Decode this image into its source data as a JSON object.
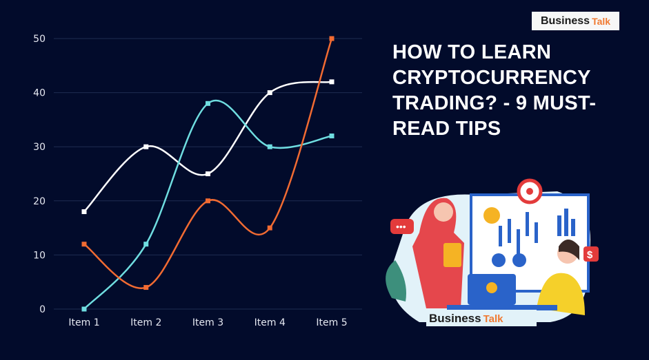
{
  "logo": {
    "business": "Business",
    "talk": "Talk"
  },
  "headline": "HOW TO LEARN CRYPTOCURRENCY TRADING? - 9 MUST-READ TIPS",
  "illustration": {
    "speech_icon": "chat-bubble-icon",
    "dollar_badge": "$",
    "logo_business": "Business",
    "logo_talk": "Talk"
  },
  "colors": {
    "background": "#020b2b",
    "white_series": "#ffffff",
    "cyan_series": "#6fdde0",
    "orange_series": "#f26b32",
    "accent": "#f07a32"
  },
  "chart_data": {
    "type": "line",
    "smooth": true,
    "categories": [
      "Item 1",
      "Item 2",
      "Item 3",
      "Item 4",
      "Item 5"
    ],
    "yticks": [
      0,
      10,
      20,
      30,
      40,
      50
    ],
    "ylim": [
      0,
      50
    ],
    "grid": true,
    "series": [
      {
        "color": "#ffffff",
        "values": [
          18,
          30,
          25,
          40,
          42
        ]
      },
      {
        "color": "#6fdde0",
        "values": [
          0,
          12,
          38,
          30,
          32
        ]
      },
      {
        "color": "#f26b32",
        "values": [
          12,
          4,
          20,
          15,
          50
        ]
      }
    ]
  }
}
